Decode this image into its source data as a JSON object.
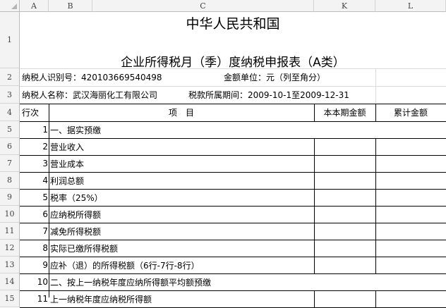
{
  "columns": [
    "A",
    "B",
    "C",
    "K",
    "L"
  ],
  "row_numbers": [
    "1",
    "2",
    "3",
    "4",
    "5",
    "6",
    "7",
    "8",
    "9",
    "10",
    "11",
    "12",
    "13",
    "14",
    "15"
  ],
  "title": {
    "line1": "中华人民共和国",
    "line2": "企业所得税月（季）度纳税申报表（A类）"
  },
  "info": {
    "taxpayer_id": "纳税人识别号：420103669540498",
    "unit": "金额单位：元（列至角分）",
    "taxpayer_name": "纳税人名称：武汉海丽化工有限公司",
    "period": "税款所属期间：2009-10-1至2009-12-31"
  },
  "table_header": {
    "row_no": "行次",
    "item": "项　目",
    "current": "本本期金额",
    "cumulative": "累计金额"
  },
  "rows": [
    {
      "no": "1",
      "item": "一、据实预缴",
      "section": true
    },
    {
      "no": "2",
      "item": "营业收入"
    },
    {
      "no": "3",
      "item": "营业成本"
    },
    {
      "no": "4",
      "item": "利润总额"
    },
    {
      "no": "5",
      "item": "税率（25%）"
    },
    {
      "no": "6",
      "item": "应纳税所得额"
    },
    {
      "no": "7",
      "item": "减免所得税额"
    },
    {
      "no": "8",
      "item": "实际已缴所得税额"
    },
    {
      "no": "9",
      "item": "应补（退）的所得税额（6行-7行-8行）"
    },
    {
      "no": "10",
      "item": "二、按上一纳税年度应纳所得额平均额预缴",
      "section": true
    },
    {
      "no": "11",
      "item": "上一纳税年度应纳税所得额"
    }
  ]
}
